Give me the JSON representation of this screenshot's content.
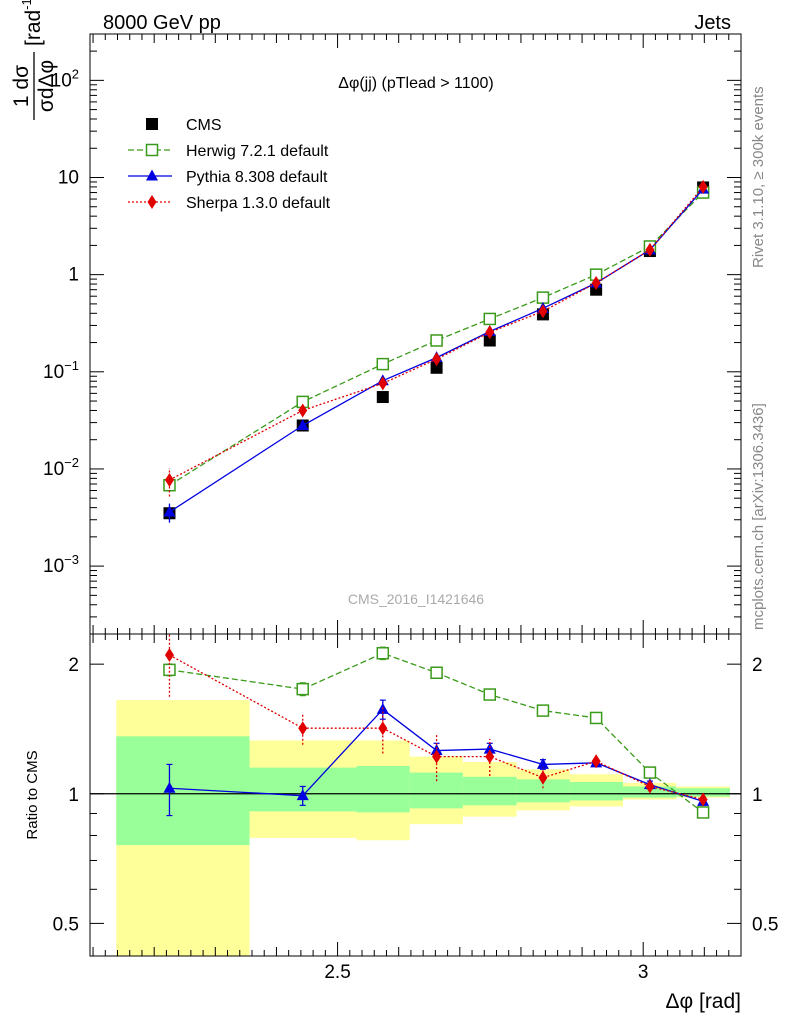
{
  "header": {
    "left": "8000 GeV pp",
    "right": "Jets"
  },
  "side_labels": {
    "rivet": "Rivet 3.1.10, ≥ 300k events",
    "arxiv": "mcplots.cern.ch [arXiv:1306.3436]"
  },
  "watermark": "CMS_2016_I1421646",
  "colors": {
    "cms": "#000000",
    "herwig": "#3a9a1a",
    "pythia": "#0000e0",
    "sherpa": "#e00000",
    "band_inner": "#99ff99",
    "band_outer": "#ffff99"
  },
  "chart_data": [
    {
      "type": "scatter",
      "title": "Δφ(jj) (pTlead >  1100)",
      "ylabel": "1/σ dσ/dΔφ [rad⁻¹]",
      "ylabel_parts": {
        "frac_num": "1 dσ",
        "frac_den": "σdΔφ",
        "unit": "[rad",
        "unit_exp": "-1",
        "unit_close": "]"
      },
      "yscale": "log",
      "ylim": [
        0.0002,
        300
      ],
      "xlim": [
        2.095,
        3.16
      ],
      "yticks": [
        {
          "value": 0.001,
          "base": "10",
          "exp": "−3"
        },
        {
          "value": 0.01,
          "base": "10",
          "exp": "−2"
        },
        {
          "value": 0.1,
          "base": "10",
          "exp": "−1"
        },
        {
          "value": 1,
          "base": "1",
          "exp": ""
        },
        {
          "value": 10,
          "base": "10",
          "exp": ""
        },
        {
          "value": 100,
          "base": "10",
          "exp": "2"
        }
      ],
      "legend_position": "top-left",
      "series": [
        {
          "name": "CMS",
          "key": "cms",
          "style": "square-filled",
          "x": [
            2.225,
            2.443,
            2.574,
            2.662,
            2.749,
            2.836,
            2.923,
            3.011,
            3.098
          ],
          "y": [
            0.0035,
            0.028,
            0.055,
            0.11,
            0.21,
            0.39,
            0.7,
            1.75,
            7.9
          ],
          "yerr": [
            0.0005,
            0.001,
            0.002,
            0.004,
            0.006,
            0.01,
            0.02,
            0.04,
            0.15
          ]
        },
        {
          "name": "Herwig 7.2.1 default",
          "key": "herwig",
          "style": "square-open-dashed",
          "x": [
            2.225,
            2.443,
            2.574,
            2.662,
            2.749,
            2.836,
            2.923,
            3.011,
            3.098
          ],
          "y": [
            0.0068,
            0.049,
            0.12,
            0.21,
            0.35,
            0.58,
            1.0,
            1.95,
            7.0
          ],
          "yerr": [
            0.0008,
            0.003,
            0.005,
            0.008,
            0.01,
            0.015,
            0.02,
            0.03,
            0.1
          ]
        },
        {
          "name": "Pythia 8.308 default",
          "key": "pythia",
          "style": "triangle-solid",
          "x": [
            2.225,
            2.443,
            2.574,
            2.662,
            2.749,
            2.836,
            2.923,
            3.011,
            3.098
          ],
          "y": [
            0.0036,
            0.028,
            0.081,
            0.14,
            0.26,
            0.45,
            0.82,
            1.8,
            7.6
          ],
          "yerr": [
            0.0008,
            0.002,
            0.005,
            0.008,
            0.01,
            0.015,
            0.02,
            0.03,
            0.1
          ]
        },
        {
          "name": "Sherpa 1.3.0 default",
          "key": "sherpa",
          "style": "diamond-dotted",
          "x": [
            2.225,
            2.443,
            2.574,
            2.662,
            2.749,
            2.836,
            2.923,
            3.011,
            3.098
          ],
          "y": [
            0.0077,
            0.04,
            0.076,
            0.135,
            0.255,
            0.42,
            0.82,
            1.8,
            8.0
          ],
          "yerr": [
            0.0025,
            0.005,
            0.008,
            0.012,
            0.02,
            0.03,
            0.04,
            0.05,
            0.15
          ]
        }
      ]
    },
    {
      "type": "scatter",
      "ylabel": "Ratio to CMS",
      "xlabel": "Δφ [rad]",
      "yscale": "log",
      "ylim": [
        0.42,
        2.35
      ],
      "xlim": [
        2.095,
        3.16
      ],
      "yticks": [
        {
          "value": 0.5,
          "label": "0.5"
        },
        {
          "value": 1,
          "label": "1"
        },
        {
          "value": 2,
          "label": "2"
        }
      ],
      "xticks": [
        {
          "value": 2.5,
          "label": "2.5"
        },
        {
          "value": 3,
          "label": "3"
        }
      ],
      "reference_line": 1,
      "bands": {
        "x_edges": [
          2.138,
          2.356,
          2.531,
          2.618,
          2.705,
          2.793,
          2.88,
          2.967,
          3.054,
          3.142
        ],
        "inner": [
          [
            0.76,
            1.36
          ],
          [
            0.91,
            1.15
          ],
          [
            0.905,
            1.16
          ],
          [
            0.925,
            1.12
          ],
          [
            0.94,
            1.095
          ],
          [
            0.955,
            1.08
          ],
          [
            0.965,
            1.065
          ],
          [
            0.98,
            1.04
          ],
          [
            0.985,
            1.03
          ]
        ],
        "outer": [
          [
            0.38,
            1.65
          ],
          [
            0.79,
            1.33
          ],
          [
            0.78,
            1.33
          ],
          [
            0.85,
            1.22
          ],
          [
            0.885,
            1.185
          ],
          [
            0.915,
            1.14
          ],
          [
            0.935,
            1.11
          ],
          [
            0.97,
            1.06
          ],
          [
            0.98,
            1.04
          ]
        ]
      },
      "series": [
        {
          "name": "Herwig 7.2.1 default",
          "key": "herwig",
          "style": "square-open-dashed",
          "x": [
            2.225,
            2.443,
            2.574,
            2.662,
            2.749,
            2.836,
            2.923,
            3.011,
            3.098
          ],
          "y": [
            1.94,
            1.75,
            2.12,
            1.91,
            1.7,
            1.56,
            1.5,
            1.12,
            0.905
          ],
          "yerr": [
            0.06,
            0.06,
            0.07,
            0.05,
            0.03,
            0.02,
            0.02,
            0.01,
            0.01
          ]
        },
        {
          "name": "Pythia 8.308 default",
          "key": "pythia",
          "style": "triangle-solid",
          "x": [
            2.225,
            2.443,
            2.574,
            2.662,
            2.749,
            2.836,
            2.923,
            3.011,
            3.098
          ],
          "y": [
            1.03,
            0.99,
            1.57,
            1.26,
            1.27,
            1.17,
            1.18,
            1.05,
            0.96
          ],
          "yerr": [
            0.14,
            0.05,
            0.08,
            0.05,
            0.04,
            0.03,
            0.02,
            0.02,
            0.01
          ]
        },
        {
          "name": "Sherpa 1.3.0 default",
          "key": "sherpa",
          "style": "diamond-dotted",
          "x": [
            2.225,
            2.443,
            2.574,
            2.662,
            2.749,
            2.836,
            2.923,
            3.011,
            3.098
          ],
          "y": [
            2.1,
            1.42,
            1.42,
            1.22,
            1.22,
            1.09,
            1.19,
            1.04,
            0.97
          ],
          "yerr": [
            0.42,
            0.12,
            0.18,
            0.15,
            0.12,
            0.06,
            0.04,
            0.02,
            0.01
          ]
        }
      ]
    }
  ]
}
